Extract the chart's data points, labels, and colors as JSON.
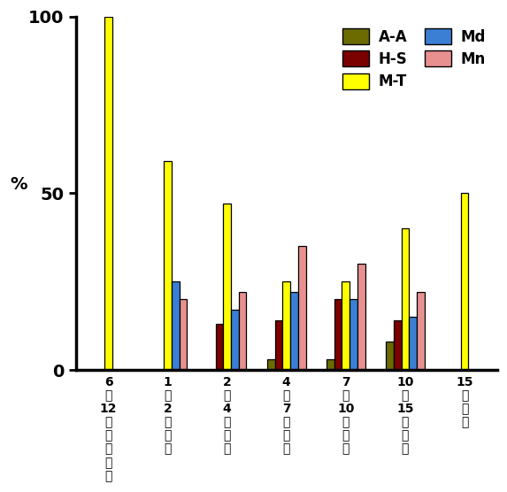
{
  "categories": [
    "6\n〜\n12\nケ\n月\n齢\n未\n満",
    "1\n〜\n2\n歳\n未\n満",
    "2\n〜\n4\n歳\n未\n満",
    "4\n〜\n7\n歳\n未\n満",
    "7\n〜\n10\n歳\n未\n満",
    "10\n〜\n15\n歳\n未\n満",
    "15\n歳\n以\n上"
  ],
  "series": {
    "A-A": [
      0,
      0,
      0,
      3,
      3,
      8,
      0
    ],
    "H-S": [
      0,
      0,
      13,
      14,
      20,
      14,
      0
    ],
    "M-T": [
      100,
      59,
      47,
      25,
      25,
      40,
      50
    ],
    "Md": [
      0,
      25,
      17,
      22,
      20,
      15,
      0
    ],
    "Mn": [
      0,
      20,
      22,
      35,
      30,
      22,
      0
    ]
  },
  "colors": {
    "A-A": "#6B6B00",
    "H-S": "#7B0000",
    "M-T": "#FFFF00",
    "Md": "#3B7FD4",
    "Mn": "#E89090"
  },
  "bar_order": [
    "A-A",
    "H-S",
    "M-T",
    "Md",
    "Mn"
  ],
  "ylabel": "%",
  "ylim": [
    0,
    100
  ],
  "yticks": [
    0,
    50,
    100
  ],
  "background_color": "#ffffff",
  "bar_width": 0.13,
  "edge_color": "#000000"
}
